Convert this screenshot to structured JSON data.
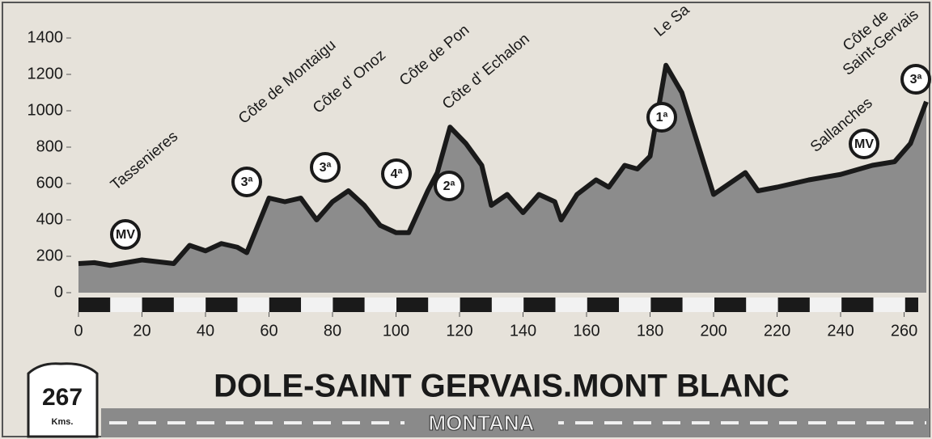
{
  "chart_data": {
    "type": "area",
    "title": "DOLE-SAINT GERVAIS.MONT BLANC",
    "distance": "267",
    "distance_unit": "Kms.",
    "category": "MONTANA",
    "x": [
      0,
      5,
      10,
      20,
      30,
      35,
      40,
      45,
      50,
      53,
      60,
      65,
      70,
      75,
      80,
      85,
      90,
      95,
      100,
      104,
      110,
      113,
      117,
      122,
      127,
      130,
      135,
      140,
      145,
      150,
      152,
      157,
      163,
      167,
      172,
      176,
      180,
      185,
      190,
      195,
      200,
      205,
      210,
      214,
      220,
      230,
      240,
      250,
      257,
      262,
      267
    ],
    "values": [
      160,
      165,
      150,
      180,
      160,
      260,
      230,
      270,
      250,
      220,
      520,
      500,
      520,
      400,
      500,
      560,
      480,
      370,
      330,
      330,
      560,
      660,
      910,
      820,
      700,
      480,
      540,
      440,
      540,
      500,
      400,
      540,
      620,
      580,
      700,
      680,
      750,
      1250,
      1100,
      820,
      540,
      600,
      660,
      560,
      580,
      620,
      650,
      700,
      720,
      820,
      1050
    ],
    "color": "#8c8c8c",
    "xlim": [
      0,
      267
    ],
    "ylim": [
      0,
      1400
    ],
    "xticks": [
      0,
      20,
      40,
      60,
      80,
      100,
      120,
      140,
      160,
      180,
      200,
      220,
      240,
      260
    ],
    "yticks": [
      0,
      200,
      400,
      600,
      800,
      1000,
      1200,
      1400
    ],
    "annotations": [
      "Tassenieres",
      "Côte de Montaigu",
      "Côte d' Onoz",
      "Côte de Pon",
      "Côte d' Echalon",
      "Le Sa",
      "Sallanches",
      "Côte de",
      "Saint-Gervais"
    ],
    "badges": [
      "MV",
      "3ª",
      "3ª",
      "4ª",
      "2ª",
      "1ª",
      "MV",
      "3ª"
    ]
  }
}
